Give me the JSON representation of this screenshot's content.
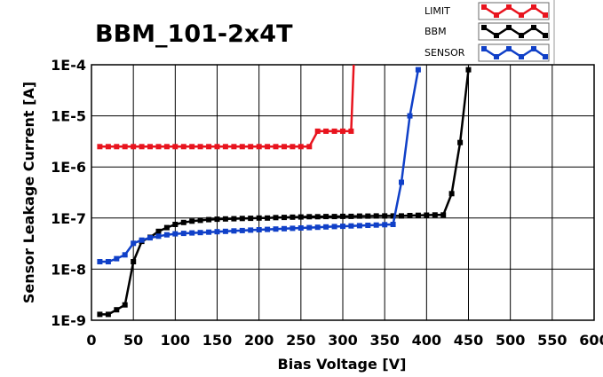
{
  "chart_data": {
    "type": "line",
    "title": "BBM_101-2x4T",
    "xlabel": "Bias Voltage [V]",
    "ylabel": "Sensor Leakage Current [A]",
    "x_range": [
      0,
      600
    ],
    "y_range": [
      1e-09,
      0.0001
    ],
    "y_scale": "log",
    "grid": true,
    "legend_position": "top-right",
    "x_ticks": [
      "0",
      "50",
      "100",
      "150",
      "200",
      "250",
      "300",
      "350",
      "400",
      "450",
      "500",
      "550",
      "600"
    ],
    "x_tick_values": [
      0,
      50,
      100,
      150,
      200,
      250,
      300,
      350,
      400,
      450,
      500,
      550,
      600
    ],
    "y_ticks": [
      "1E-9",
      "1E-8",
      "1E-7",
      "1E-6",
      "1E-5",
      "1E-4"
    ],
    "y_tick_values": [
      1e-09,
      1e-08,
      1e-07,
      1e-06,
      1e-05,
      0.0001
    ],
    "series": [
      {
        "name": "LIMIT",
        "color": "#e8141e",
        "x": [
          10,
          20,
          30,
          40,
          50,
          60,
          70,
          80,
          90,
          100,
          110,
          120,
          130,
          140,
          150,
          160,
          170,
          180,
          190,
          200,
          210,
          220,
          230,
          240,
          250,
          260,
          270,
          280,
          290,
          300,
          310,
          313
        ],
        "y": [
          2.5e-06,
          2.5e-06,
          2.5e-06,
          2.5e-06,
          2.5e-06,
          2.5e-06,
          2.5e-06,
          2.5e-06,
          2.5e-06,
          2.5e-06,
          2.5e-06,
          2.5e-06,
          2.5e-06,
          2.5e-06,
          2.5e-06,
          2.5e-06,
          2.5e-06,
          2.5e-06,
          2.5e-06,
          2.5e-06,
          2.5e-06,
          2.5e-06,
          2.5e-06,
          2.5e-06,
          2.5e-06,
          2.5e-06,
          5e-06,
          5e-06,
          5e-06,
          5e-06,
          5e-06,
          0.0001
        ]
      },
      {
        "name": "BBM",
        "color": "#000000",
        "x": [
          10,
          20,
          30,
          40,
          50,
          60,
          70,
          80,
          90,
          100,
          110,
          120,
          130,
          140,
          150,
          160,
          170,
          180,
          190,
          200,
          210,
          220,
          230,
          240,
          250,
          260,
          270,
          280,
          290,
          300,
          310,
          320,
          330,
          340,
          350,
          360,
          370,
          380,
          390,
          400,
          410,
          420,
          430,
          440,
          450
        ],
        "y": [
          1.3e-09,
          1.3e-09,
          1.6e-09,
          2e-09,
          1.4e-08,
          3.5e-08,
          4.2e-08,
          5.5e-08,
          6.5e-08,
          7.5e-08,
          8.2e-08,
          8.7e-08,
          9e-08,
          9.3e-08,
          9.5e-08,
          9.6e-08,
          9.7e-08,
          9.8e-08,
          9.9e-08,
          1e-07,
          1e-07,
          1.02e-07,
          1.03e-07,
          1.04e-07,
          1.05e-07,
          1.06e-07,
          1.06e-07,
          1.07e-07,
          1.07e-07,
          1.08e-07,
          1.08e-07,
          1.09e-07,
          1.09e-07,
          1.1e-07,
          1.1e-07,
          1.1e-07,
          1.1e-07,
          1.12e-07,
          1.13e-07,
          1.14e-07,
          1.15e-07,
          1.15e-07,
          3e-07,
          3e-06,
          8e-05
        ]
      },
      {
        "name": "SENSOR",
        "color": "#1040c8",
        "x": [
          10,
          20,
          30,
          40,
          50,
          60,
          70,
          80,
          90,
          100,
          110,
          120,
          130,
          140,
          150,
          160,
          170,
          180,
          190,
          200,
          210,
          220,
          230,
          240,
          250,
          260,
          270,
          280,
          290,
          300,
          310,
          320,
          330,
          340,
          350,
          360,
          370,
          380,
          390
        ],
        "y": [
          1.4e-08,
          1.4e-08,
          1.6e-08,
          1.9e-08,
          3.2e-08,
          3.7e-08,
          4.1e-08,
          4.4e-08,
          4.7e-08,
          4.9e-08,
          5e-08,
          5.1e-08,
          5.2e-08,
          5.3e-08,
          5.4e-08,
          5.5e-08,
          5.6e-08,
          5.7e-08,
          5.8e-08,
          5.9e-08,
          6e-08,
          6.1e-08,
          6.2e-08,
          6.3e-08,
          6.4e-08,
          6.5e-08,
          6.6e-08,
          6.7e-08,
          6.8e-08,
          6.9e-08,
          7e-08,
          7.1e-08,
          7.2e-08,
          7.3e-08,
          7.4e-08,
          7.5e-08,
          5e-07,
          1e-05,
          8e-05
        ]
      }
    ]
  }
}
